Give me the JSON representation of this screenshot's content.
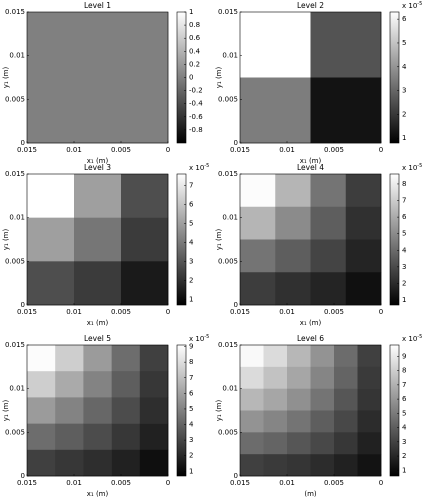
{
  "chart_data": [
    {
      "type": "heatmap",
      "title": "Level 1",
      "colormap": "gray",
      "z": [
        [
          0
        ]
      ],
      "zlim": [
        -1,
        1
      ],
      "zticks": [
        -0.8,
        -0.6,
        -0.4,
        -0.2,
        0,
        0.2,
        0.4,
        0.6,
        0.8,
        1
      ],
      "xlabel": "x₁ (m)",
      "ylabel": "y₁ (m)",
      "xlim": [
        0.015,
        0
      ],
      "xticks": [
        0.015,
        0.01,
        0.005,
        0
      ],
      "ylim": [
        0,
        0.015
      ],
      "yticks": [
        0,
        0.005,
        0.01,
        0.015
      ]
    },
    {
      "type": "heatmap",
      "title": "Level 2",
      "colormap": "gray",
      "z": [
        [
          6.3,
          2.6
        ],
        [
          3.5,
          1.2
        ]
      ],
      "zlim": [
        0.8,
        6.3
      ],
      "zticks": [
        1,
        2,
        3,
        4,
        5,
        6
      ],
      "colorbar_label": "x 10",
      "colorbar_exponent": "-5",
      "xlabel": "x₁ (m)",
      "ylabel": "y₁ (m)",
      "xlim": [
        0.015,
        0
      ],
      "xticks": [
        0.015,
        0.01,
        0.005,
        0
      ],
      "ylim": [
        0,
        0.015
      ],
      "yticks": [
        0,
        0.005,
        0.01,
        0.015
      ]
    },
    {
      "type": "heatmap",
      "title": "Level 3",
      "colormap": "gray",
      "z": [
        [
          7.6,
          5.0,
          2.8
        ],
        [
          5.0,
          3.9,
          2.3
        ],
        [
          2.8,
          2.3,
          1.4
        ]
      ],
      "zlim": [
        0.7,
        7.6
      ],
      "zticks": [
        1,
        2,
        3,
        4,
        5,
        6,
        7
      ],
      "colorbar_label": "x 10",
      "colorbar_exponent": "-5",
      "xlabel": "x₁ (m)",
      "ylabel": "y₁ (m)",
      "xlim": [
        0.015,
        0
      ],
      "xticks": [
        0.015,
        0.01,
        0.005,
        0
      ],
      "ylim": [
        0,
        0.015
      ],
      "yticks": [
        0,
        0.005,
        0.01,
        0.015
      ]
    },
    {
      "type": "heatmap",
      "title": "Level 4",
      "colormap": "gray",
      "z": [
        [
          8.5,
          6.3,
          4.3,
          2.6
        ],
        [
          6.3,
          5.0,
          3.6,
          2.2
        ],
        [
          4.3,
          3.6,
          2.8,
          1.8
        ],
        [
          2.6,
          2.2,
          1.8,
          1.2
        ]
      ],
      "zlim": [
        0.7,
        8.6
      ],
      "zticks": [
        1,
        2,
        3,
        4,
        5,
        6,
        7,
        8
      ],
      "colorbar_label": "x 10",
      "colorbar_exponent": "-5",
      "xlabel": "x₁ (m)",
      "ylabel": "y₁ (m)",
      "xlim": [
        0.015,
        0
      ],
      "xticks": [
        0.015,
        0.01,
        0.005,
        0
      ],
      "ylim": [
        0,
        0.015
      ],
      "yticks": [
        0,
        0.005,
        0.01,
        0.015
      ]
    },
    {
      "type": "heatmap",
      "title": "Level 5",
      "colormap": "gray",
      "z": [
        [
          9.0,
          7.5,
          5.8,
          4.3,
          2.8
        ],
        [
          7.5,
          6.3,
          5.0,
          3.8,
          2.5
        ],
        [
          5.8,
          5.0,
          4.1,
          3.2,
          2.2
        ],
        [
          4.3,
          3.8,
          3.2,
          2.5,
          1.8
        ],
        [
          2.8,
          2.5,
          2.2,
          1.8,
          1.2
        ]
      ],
      "zlim": [
        0.7,
        9.1
      ],
      "zticks": [
        1,
        2,
        3,
        4,
        5,
        6,
        7,
        8,
        9
      ],
      "colorbar_label": "x 10",
      "colorbar_exponent": "-5",
      "xlabel": "x₁ (m)",
      "ylabel": "y₁ (m)",
      "xlim": [
        0.015,
        0
      ],
      "xticks": [
        0.015,
        0.01,
        0.005,
        0
      ],
      "ylim": [
        0,
        0.015
      ],
      "yticks": [
        0,
        0.005,
        0.01,
        0.015
      ]
    },
    {
      "type": "heatmap",
      "title": "Level 6",
      "colormap": "gray",
      "z": [
        [
          9.6,
          8.5,
          7.2,
          5.9,
          4.5,
          2.9
        ],
        [
          8.5,
          7.6,
          6.6,
          5.4,
          4.2,
          2.7
        ],
        [
          7.2,
          6.6,
          5.8,
          4.8,
          3.7,
          2.5
        ],
        [
          5.9,
          5.4,
          4.8,
          4.0,
          3.2,
          2.2
        ],
        [
          4.5,
          4.2,
          3.7,
          3.2,
          2.6,
          1.8
        ],
        [
          2.9,
          2.7,
          2.5,
          2.2,
          1.8,
          1.3
        ]
      ],
      "zlim": [
        0.6,
        9.8
      ],
      "zticks": [
        1,
        2,
        3,
        4,
        5,
        6,
        7,
        8,
        9
      ],
      "colorbar_label": "x 10",
      "colorbar_exponent": "-5",
      "xlabel": "(m)",
      "ylabel": "y₁ (m)",
      "xlim": [
        0.015,
        0
      ],
      "xticks": [
        0.015,
        0.01,
        0.005,
        0
      ],
      "ylim": [
        0,
        0.015
      ],
      "yticks": [
        0,
        0.005,
        0.01,
        0.015
      ]
    }
  ]
}
